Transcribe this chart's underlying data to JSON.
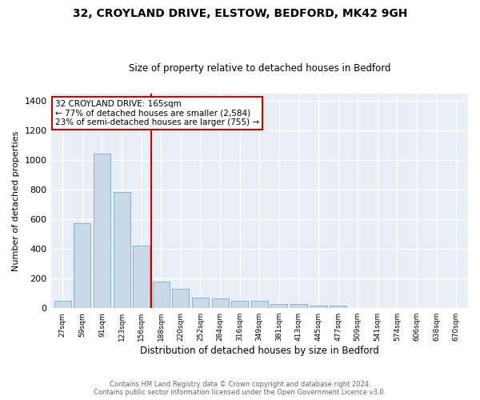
{
  "title1": "32, CROYLAND DRIVE, ELSTOW, BEDFORD, MK42 9GH",
  "title2": "Size of property relative to detached houses in Bedford",
  "xlabel": "Distribution of detached houses by size in Bedford",
  "ylabel": "Number of detached properties",
  "categories": [
    "27sqm",
    "59sqm",
    "91sqm",
    "123sqm",
    "156sqm",
    "188sqm",
    "220sqm",
    "252sqm",
    "284sqm",
    "316sqm",
    "349sqm",
    "381sqm",
    "413sqm",
    "445sqm",
    "477sqm",
    "509sqm",
    "541sqm",
    "574sqm",
    "606sqm",
    "638sqm",
    "670sqm"
  ],
  "values": [
    50,
    575,
    1045,
    785,
    425,
    180,
    130,
    70,
    68,
    50,
    50,
    28,
    27,
    20,
    15,
    0,
    0,
    0,
    0,
    0,
    0
  ],
  "bar_color": "#c9d9e8",
  "bar_edge_color": "#7aaac8",
  "vline_x": 4.5,
  "vline_color": "#cc0000",
  "annotation_line1": "32 CROYLAND DRIVE: 165sqm",
  "annotation_line2": "← 77% of detached houses are smaller (2,584)",
  "annotation_line3": "23% of semi-detached houses are larger (755) →",
  "annotation_box_color": "#ffffff",
  "annotation_box_edge": "#cc0000",
  "ylim": [
    0,
    1450
  ],
  "yticks": [
    0,
    200,
    400,
    600,
    800,
    1000,
    1200,
    1400
  ],
  "footer1": "Contains HM Land Registry data © Crown copyright and database right 2024.",
  "footer2": "Contains public sector information licensed under the Open Government Licence v3.0.",
  "fig_bg_color": "#ffffff",
  "plot_bg_color": "#e8eef5"
}
